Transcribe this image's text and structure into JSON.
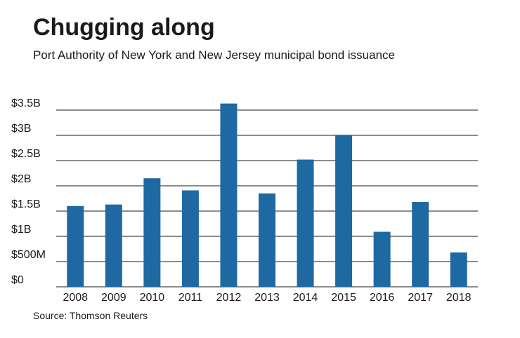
{
  "chart_data": {
    "type": "bar",
    "title": "Chugging along",
    "subtitle": "Port Authority of New York and New Jersey municipal bond issuance",
    "source": "Source: Thomson Reuters",
    "categories": [
      "2008",
      "2009",
      "2010",
      "2011",
      "2012",
      "2013",
      "2014",
      "2015",
      "2016",
      "2017",
      "2018"
    ],
    "values": [
      1.6,
      1.63,
      2.15,
      1.91,
      3.63,
      1.85,
      2.52,
      3.01,
      1.09,
      1.68,
      0.68
    ],
    "unit": "billion USD",
    "ylim": [
      0,
      3.5
    ],
    "yticks": [
      0,
      0.5,
      1,
      1.5,
      2,
      2.5,
      3,
      3.5
    ],
    "ytick_labels": [
      "$0",
      "$500M",
      "$1B",
      "$1.5B",
      "$2B",
      "$2.5B",
      "$3B",
      "$3.5B"
    ],
    "grid": true,
    "bar_color": "#1f69a3",
    "grid_color": "#1a1a1a"
  }
}
